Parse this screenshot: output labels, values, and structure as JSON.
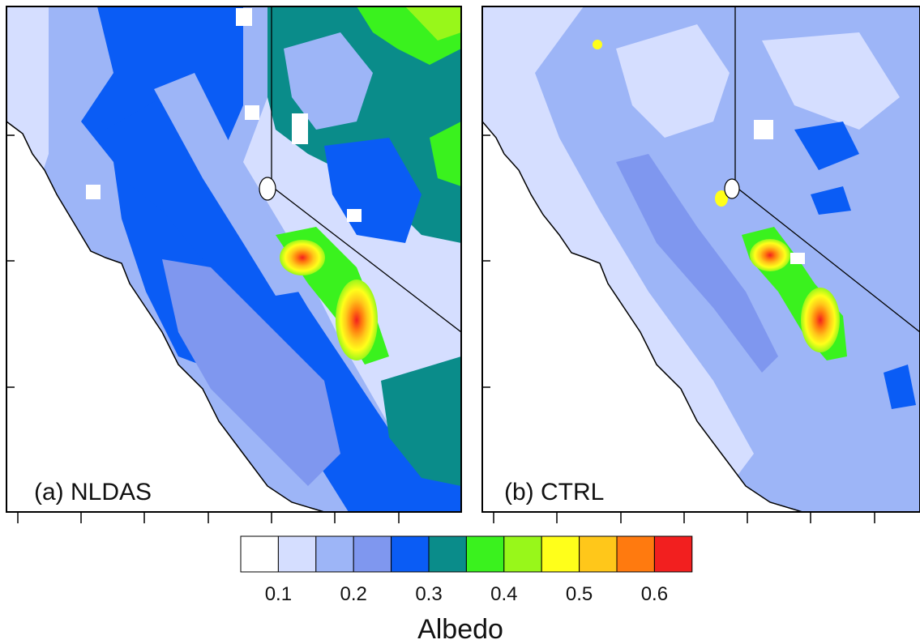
{
  "figure": {
    "panels": [
      {
        "label": "(a) NLDAS"
      },
      {
        "label": "(b) CTRL"
      }
    ],
    "colorbar": {
      "title": "Albedo",
      "tick_labels": [
        "0.1",
        "0.2",
        "0.3",
        "0.4",
        "0.5",
        "0.6"
      ],
      "colors": [
        "#ffffff",
        "#d5deff",
        "#9db5f7",
        "#7f97ef",
        "#0a5cf5",
        "#0a8c8a",
        "#3af21e",
        "#98f71a",
        "#ffff1a",
        "#ffc71a",
        "#ff7a0f",
        "#f21f1f"
      ]
    }
  }
}
